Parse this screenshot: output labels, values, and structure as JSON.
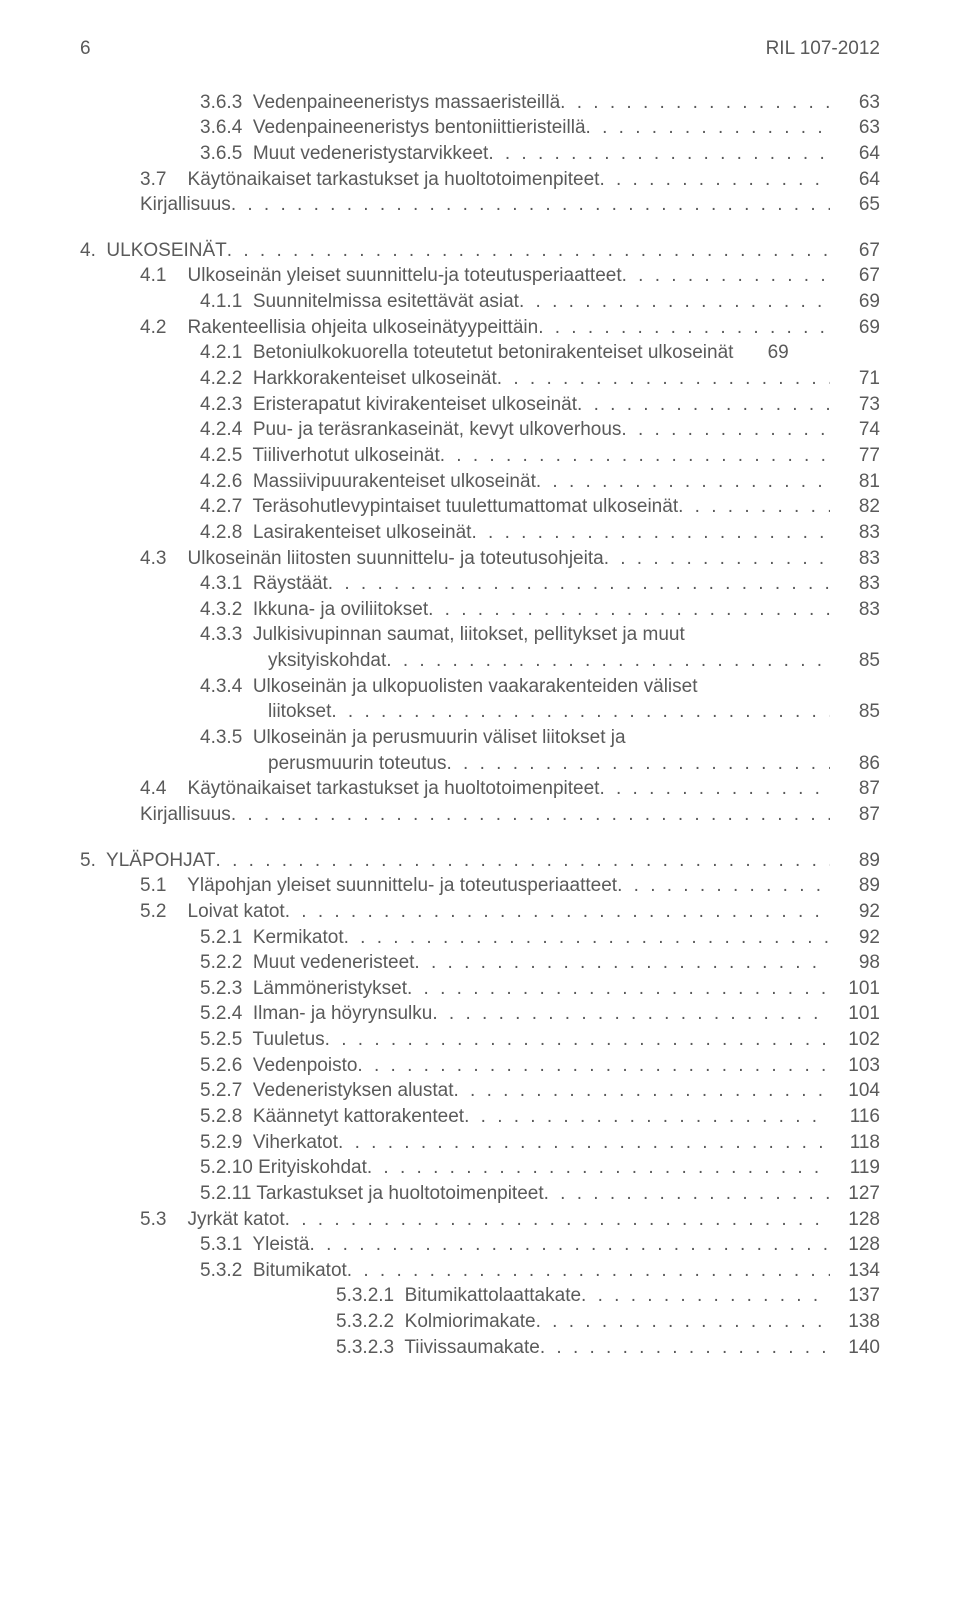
{
  "header": {
    "page_number": "6",
    "doc_id": "RIL 107-2012"
  },
  "toc": [
    {
      "indent": 2,
      "label": "3.6.3  Vedenpaineeneristys massaeristeillä",
      "page": "63"
    },
    {
      "indent": 2,
      "label": "3.6.4  Vedenpaineeneristys bentoniittieristeillä",
      "page": "63"
    },
    {
      "indent": 2,
      "label": "3.6.5  Muut vedeneristystarvikkeet",
      "page": "64"
    },
    {
      "indent": 1,
      "label": "3.7    Käytönaikaiset tarkastukset ja huoltotoimenpiteet",
      "page": "64"
    },
    {
      "indent": 1,
      "label": "Kirjallisuus",
      "page": "65"
    },
    {
      "spacer": true
    },
    {
      "indent": 0,
      "label": "4.  ULKOSEINÄT",
      "page": "67"
    },
    {
      "indent": 1,
      "label": "4.1    Ulkoseinän yleiset suunnittelu-ja toteutusperiaatteet",
      "page": "67"
    },
    {
      "indent": 2,
      "label": "4.1.1  Suunnitelmissa esitettävät asiat",
      "page": "69"
    },
    {
      "indent": 1,
      "label": "4.2    Rakenteellisia ohjeita ulkoseinätyypeittäin",
      "page": "69"
    },
    {
      "indent": 2,
      "label": "4.2.1  Betoniulkokuorella toteutetut betonirakenteiset ulkoseinät ",
      "page": "69",
      "nodots": true
    },
    {
      "indent": 2,
      "label": "4.2.2  Harkkorakenteiset ulkoseinät",
      "page": "71"
    },
    {
      "indent": 2,
      "label": "4.2.3  Eristerapatut kivirakenteiset ulkoseinät",
      "page": "73"
    },
    {
      "indent": 2,
      "label": "4.2.4  Puu- ja teräsrankaseinät, kevyt ulkoverhous",
      "page": "74"
    },
    {
      "indent": 2,
      "label": "4.2.5  Tiiliverhotut ulkoseinät",
      "page": "77"
    },
    {
      "indent": 2,
      "label": "4.2.6  Massiivipuurakenteiset ulkoseinät",
      "page": "81"
    },
    {
      "indent": 2,
      "label": "4.2.7  Teräsohutlevypintaiset tuulettumattomat ulkoseinät",
      "page": "82"
    },
    {
      "indent": 2,
      "label": "4.2.8  Lasirakenteiset ulkoseinät",
      "page": "83"
    },
    {
      "indent": 1,
      "label": "4.3    Ulkoseinän liitosten suunnittelu- ja toteutusohjeita",
      "page": "83"
    },
    {
      "indent": 2,
      "label": "4.3.1  Räystäät",
      "page": "83"
    },
    {
      "indent": 2,
      "label": "4.3.2  Ikkuna- ja oviliitokset",
      "page": "83"
    },
    {
      "indent": 2,
      "label": "4.3.3  Julkisivupinnan saumat, liitokset, pellitykset ja muut",
      "nodots": true,
      "nopage": true
    },
    {
      "indent": 3,
      "label": "yksityiskohdat",
      "page": "85"
    },
    {
      "indent": 2,
      "label": "4.3.4  Ulkoseinän ja ulkopuolisten vaakarakenteiden väliset",
      "nodots": true,
      "nopage": true
    },
    {
      "indent": 3,
      "label": "liitokset",
      "page": "85"
    },
    {
      "indent": 2,
      "label": "4.3.5  Ulkoseinän ja perusmuurin väliset liitokset ja",
      "nodots": true,
      "nopage": true
    },
    {
      "indent": 3,
      "label": "perusmuurin toteutus",
      "page": "86"
    },
    {
      "indent": 1,
      "label": "4.4    Käytönaikaiset tarkastukset ja huoltotoimenpiteet",
      "page": "87"
    },
    {
      "indent": 1,
      "label": "Kirjallisuus",
      "page": "87"
    },
    {
      "spacer": true
    },
    {
      "indent": 0,
      "label": "5.  YLÄPOHJAT",
      "page": "89"
    },
    {
      "indent": 1,
      "label": "5.1    Yläpohjan yleiset suunnittelu- ja toteutusperiaatteet",
      "page": "89"
    },
    {
      "indent": 1,
      "label": "5.2    Loivat katot",
      "page": "92"
    },
    {
      "indent": 2,
      "label": "5.2.1  Kermikatot",
      "page": "92"
    },
    {
      "indent": 2,
      "label": "5.2.2  Muut vedeneristeet",
      "page": "98"
    },
    {
      "indent": 2,
      "label": "5.2.3  Lämmöneristykset",
      "page": "101"
    },
    {
      "indent": 2,
      "label": "5.2.4  Ilman- ja höyrynsulku",
      "page": "101"
    },
    {
      "indent": 2,
      "label": "5.2.5  Tuuletus",
      "page": "102"
    },
    {
      "indent": 2,
      "label": "5.2.6  Vedenpoisto",
      "page": "103"
    },
    {
      "indent": 2,
      "label": "5.2.7  Vedeneristyksen alustat",
      "page": "104"
    },
    {
      "indent": 2,
      "label": "5.2.8  Käännetyt kattorakenteet",
      "page": "116"
    },
    {
      "indent": 2,
      "label": "5.2.9  Viherkatot",
      "page": "118"
    },
    {
      "indent": 2,
      "label": "5.2.10 Erityiskohdat",
      "page": "119"
    },
    {
      "indent": 2,
      "label": "5.2.11 Tarkastukset ja huoltotoimenpiteet",
      "page": "127"
    },
    {
      "indent": 1,
      "label": "5.3    Jyrkät katot",
      "page": "128"
    },
    {
      "indent": 2,
      "label": "5.3.1  Yleistä",
      "page": "128"
    },
    {
      "indent": 2,
      "label": "5.3.2  Bitumikatot",
      "page": "134"
    },
    {
      "indent": 5,
      "label": "5.3.2.1  Bitumikattolaattakate",
      "page": "137"
    },
    {
      "indent": 5,
      "label": "5.3.2.2  Kolmiorimakate",
      "page": "138"
    },
    {
      "indent": 5,
      "label": "5.3.2.3  Tiivissaumakate",
      "page": "140"
    }
  ]
}
